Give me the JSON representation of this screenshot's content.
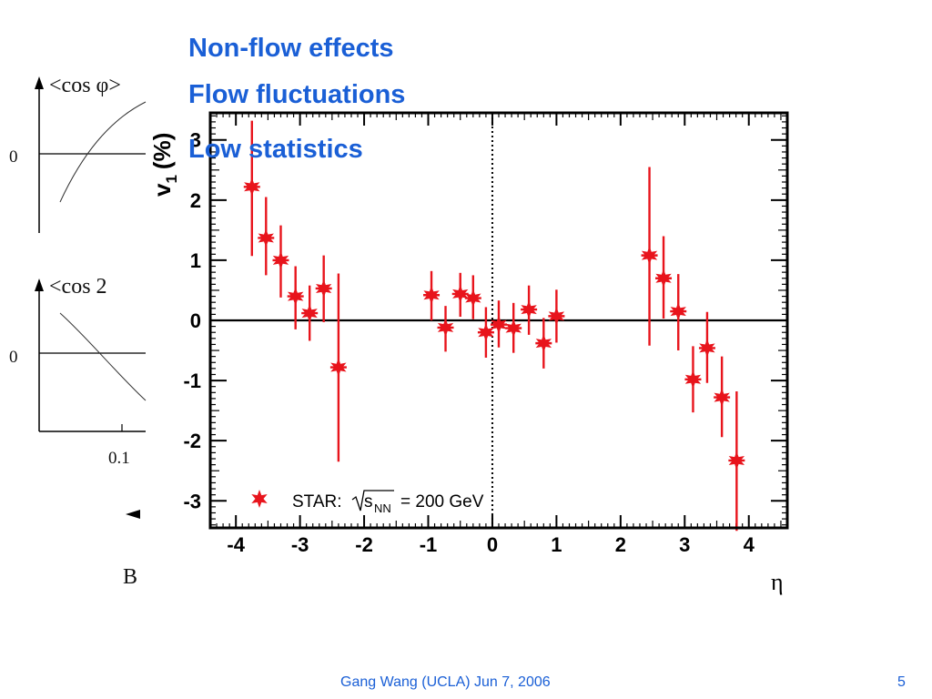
{
  "slide": {
    "bullets": [
      "Non-flow effects",
      "Flow fluctuations",
      "Low statistics"
    ],
    "footer": "Gang Wang (UCLA) Jun 7, 2006",
    "page_number": "5",
    "accent_color": "#1a5fd6"
  },
  "background_plots": {
    "top_label": "<cos   φ>",
    "mid_label": "<cos 2",
    "zero_label_top": "0",
    "zero_label_mid": "0",
    "x_tick": "0.1",
    "bottom_letter": "B"
  },
  "chart_data": {
    "type": "scatter",
    "title": "",
    "xlabel": "η",
    "ylabel": "v₁ (%)",
    "ylabel_main": "v",
    "ylabel_sub": "1",
    "ylabel_unit": "(%)",
    "xlim": [
      -4.4,
      4.6
    ],
    "ylim": [
      -3.45,
      3.45
    ],
    "xticks": [
      -4,
      -3,
      -2,
      -1,
      0,
      1,
      2,
      3,
      4
    ],
    "xtick_labels": [
      "-4",
      "-3",
      "-2",
      "-1",
      "0",
      "1",
      "2",
      "3",
      "4"
    ],
    "yticks": [
      -3,
      -2,
      -1,
      0,
      1,
      2,
      3
    ],
    "ytick_labels": [
      "-3",
      "-2",
      "-1",
      "0",
      "1",
      "2",
      "3"
    ],
    "reference_lines": {
      "horizontal_y": 0,
      "vertical_dotted_x": 0
    },
    "legend": {
      "position": "bottom-left",
      "label_prefix": "STAR:",
      "sqrt_s": "s",
      "sub": "NN",
      "label_suffix": "= 200 GeV"
    },
    "marker_color": "#e8141c",
    "series": [
      {
        "name": "STAR: √s_NN = 200 GeV",
        "points": [
          {
            "x": -3.75,
            "y": 2.22,
            "yerr_low": 1.15,
            "yerr_high": 1.1
          },
          {
            "x": -3.53,
            "y": 1.37,
            "yerr_low": 0.62,
            "yerr_high": 0.68
          },
          {
            "x": -3.3,
            "y": 1.0,
            "yerr_low": 0.62,
            "yerr_high": 0.58
          },
          {
            "x": -3.07,
            "y": 0.4,
            "yerr_low": 0.55,
            "yerr_high": 0.5
          },
          {
            "x": -2.85,
            "y": 0.12,
            "yerr_low": 0.46,
            "yerr_high": 0.46
          },
          {
            "x": -2.63,
            "y": 0.53,
            "yerr_low": 0.56,
            "yerr_high": 0.55
          },
          {
            "x": -2.4,
            "y": -0.78,
            "yerr_low": 1.57,
            "yerr_high": 1.56
          },
          {
            "x": -0.95,
            "y": 0.42,
            "yerr_low": 0.42,
            "yerr_high": 0.4
          },
          {
            "x": -0.73,
            "y": -0.12,
            "yerr_low": 0.4,
            "yerr_high": 0.36
          },
          {
            "x": -0.5,
            "y": 0.44,
            "yerr_low": 0.38,
            "yerr_high": 0.35
          },
          {
            "x": -0.3,
            "y": 0.37,
            "yerr_low": 0.35,
            "yerr_high": 0.38
          },
          {
            "x": -0.1,
            "y": -0.2,
            "yerr_low": 0.42,
            "yerr_high": 0.42
          },
          {
            "x": 0.1,
            "y": -0.07,
            "yerr_low": 0.38,
            "yerr_high": 0.4
          },
          {
            "x": 0.33,
            "y": -0.13,
            "yerr_low": 0.41,
            "yerr_high": 0.42
          },
          {
            "x": 0.57,
            "y": 0.18,
            "yerr_low": 0.42,
            "yerr_high": 0.4
          },
          {
            "x": 0.8,
            "y": -0.38,
            "yerr_low": 0.42,
            "yerr_high": 0.42
          },
          {
            "x": 1.0,
            "y": 0.07,
            "yerr_low": 0.44,
            "yerr_high": 0.44
          },
          {
            "x": 2.45,
            "y": 1.08,
            "yerr_low": 1.5,
            "yerr_high": 1.47
          },
          {
            "x": 2.67,
            "y": 0.7,
            "yerr_low": 0.67,
            "yerr_high": 0.7
          },
          {
            "x": 2.9,
            "y": 0.15,
            "yerr_low": 0.65,
            "yerr_high": 0.62
          },
          {
            "x": 3.13,
            "y": -0.98,
            "yerr_low": 0.55,
            "yerr_high": 0.55
          },
          {
            "x": 3.35,
            "y": -0.46,
            "yerr_low": 0.58,
            "yerr_high": 0.6
          },
          {
            "x": 3.58,
            "y": -1.28,
            "yerr_low": 0.66,
            "yerr_high": 0.68
          },
          {
            "x": 3.81,
            "y": -2.33,
            "yerr_low": 1.17,
            "yerr_high": 1.15
          }
        ]
      }
    ]
  }
}
